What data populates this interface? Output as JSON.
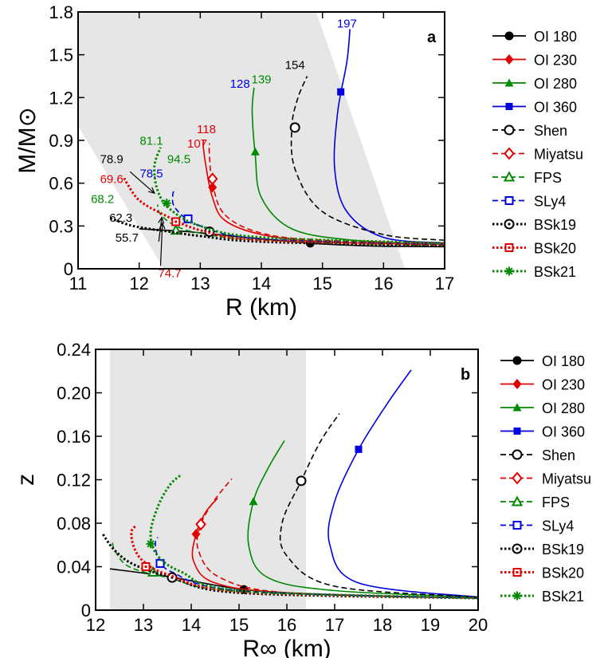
{
  "chart_data": [
    {
      "type": "line",
      "panel_label": "a",
      "xlabel": "R (km)",
      "ylabel": "M/M⊙",
      "xlim": [
        11,
        17
      ],
      "ylim": [
        0,
        1.8
      ],
      "xticks": [
        11,
        12,
        13,
        14,
        15,
        16,
        17
      ],
      "yticks": [
        0,
        0.3,
        0.6,
        0.9,
        1.2,
        1.5,
        1.8
      ],
      "ytick_labels": [
        "0",
        "0.3",
        "0.6",
        "0.9",
        "1.2",
        "1.5",
        "1.8"
      ],
      "xtick_labels": [
        "11",
        "12",
        "13",
        "14",
        "15",
        "16",
        "17"
      ],
      "shaded_region": [
        [
          11,
          1.0
        ],
        [
          11,
          1.8
        ],
        [
          14.9,
          1.8
        ],
        [
          16.35,
          0
        ],
        [
          12.4,
          0
        ]
      ],
      "grid": false,
      "legend_position": "right",
      "series": [
        {
          "name": "OI 180",
          "color": "#000000",
          "dash": "solid",
          "marker": "filled-circle",
          "marker_point": [
            14.8,
            0.18
          ],
          "points": [
            [
              12.0,
              0.28
            ],
            [
              12.8,
              0.26
            ],
            [
              13.5,
              0.23
            ],
            [
              14.8,
              0.18
            ],
            [
              15.8,
              0.16
            ],
            [
              17.0,
              0.155
            ]
          ]
        },
        {
          "name": "OI 230",
          "color": "#e00000",
          "dash": "solid",
          "marker": "filled-diamond",
          "marker_point": [
            13.2,
            0.57
          ],
          "points": [
            [
              17.0,
              0.17
            ],
            [
              15.0,
              0.19
            ],
            [
              14.0,
              0.24
            ],
            [
              13.4,
              0.34
            ],
            [
              13.2,
              0.5
            ],
            [
              13.1,
              0.7
            ],
            [
              13.05,
              0.85
            ],
            [
              13.05,
              0.9
            ]
          ]
        },
        {
          "name": "OI 280",
          "color": "#008a00",
          "dash": "solid",
          "marker": "filled-triangle",
          "marker_point": [
            13.9,
            0.82
          ],
          "points": [
            [
              17.0,
              0.17
            ],
            [
              15.5,
              0.2
            ],
            [
              14.5,
              0.28
            ],
            [
              14.0,
              0.5
            ],
            [
              13.9,
              0.8
            ],
            [
              13.85,
              1.1
            ],
            [
              13.88,
              1.27
            ]
          ]
        },
        {
          "name": "OI 360",
          "color": "#0000e0",
          "dash": "solid",
          "marker": "filled-square",
          "marker_point": [
            15.3,
            1.24
          ],
          "points": [
            [
              17.0,
              0.18
            ],
            [
              16.0,
              0.22
            ],
            [
              15.4,
              0.4
            ],
            [
              15.2,
              0.7
            ],
            [
              15.25,
              1.1
            ],
            [
              15.4,
              1.45
            ],
            [
              15.45,
              1.68
            ]
          ]
        },
        {
          "name": "Shen",
          "color": "#000000",
          "dash": "dashed",
          "marker": "open-circle",
          "marker_point": [
            14.55,
            0.99
          ],
          "points": [
            [
              17.0,
              0.2
            ],
            [
              16.0,
              0.24
            ],
            [
              15.0,
              0.4
            ],
            [
              14.55,
              0.7
            ],
            [
              14.5,
              1.0
            ],
            [
              14.6,
              1.2
            ],
            [
              14.75,
              1.35
            ]
          ]
        },
        {
          "name": "Miyatsu",
          "color": "#e00000",
          "dash": "dashed",
          "marker": "open-diamond",
          "marker_point": [
            13.2,
            0.63
          ],
          "points": [
            [
              17.0,
              0.18
            ],
            [
              15.0,
              0.2
            ],
            [
              14.0,
              0.25
            ],
            [
              13.4,
              0.38
            ],
            [
              13.2,
              0.6
            ],
            [
              13.15,
              0.8
            ],
            [
              13.15,
              0.88
            ]
          ]
        },
        {
          "name": "FPS",
          "color": "#008a00",
          "dash": "dashed",
          "marker": "open-triangle",
          "marker_point": [
            12.6,
            0.27
          ],
          "points": [
            [
              17.0,
              0.16
            ],
            [
              14.0,
              0.2
            ],
            [
              13.0,
              0.25
            ],
            [
              12.6,
              0.3
            ],
            [
              12.35,
              0.38
            ],
            [
              12.3,
              0.45
            ]
          ]
        },
        {
          "name": "SLy4",
          "color": "#0000e0",
          "dash": "dashed",
          "marker": "open-square",
          "marker_point": [
            12.8,
            0.35
          ],
          "points": [
            [
              17.0,
              0.17
            ],
            [
              14.0,
              0.21
            ],
            [
              13.0,
              0.3
            ],
            [
              12.6,
              0.42
            ],
            [
              12.55,
              0.52
            ],
            [
              12.6,
              0.56
            ]
          ]
        },
        {
          "name": "BSk19",
          "color": "#000000",
          "dash": "dotted",
          "marker": "open-circle-dot",
          "marker_point": [
            13.15,
            0.26
          ],
          "points": [
            [
              17.0,
              0.16
            ],
            [
              14.0,
              0.19
            ],
            [
              13.0,
              0.23
            ],
            [
              12.5,
              0.26
            ],
            [
              11.9,
              0.3
            ],
            [
              11.5,
              0.36
            ]
          ]
        },
        {
          "name": "BSk20",
          "color": "#e00000",
          "dash": "dotted",
          "marker": "open-square-dot",
          "marker_point": [
            12.6,
            0.33
          ],
          "points": [
            [
              17.0,
              0.17
            ],
            [
              14.0,
              0.2
            ],
            [
              13.0,
              0.27
            ],
            [
              12.4,
              0.38
            ],
            [
              12.0,
              0.48
            ],
            [
              11.8,
              0.6
            ],
            [
              11.75,
              0.64
            ]
          ]
        },
        {
          "name": "BSk21",
          "color": "#008a00",
          "dash": "dotted",
          "marker": "asterisk",
          "marker_point": [
            12.45,
            0.46
          ],
          "points": [
            [
              17.0,
              0.18
            ],
            [
              14.0,
              0.22
            ],
            [
              13.0,
              0.3
            ],
            [
              12.5,
              0.42
            ],
            [
              12.3,
              0.55
            ],
            [
              12.25,
              0.72
            ],
            [
              12.35,
              0.85
            ]
          ]
        }
      ],
      "annotations": [
        {
          "text": "197",
          "x": 15.4,
          "y": 1.69,
          "color": "#0000e0"
        },
        {
          "text": "154",
          "x": 14.55,
          "y": 1.4,
          "color": "#000000"
        },
        {
          "text": "128",
          "x": 13.65,
          "y": 1.27,
          "color": "#0000e0"
        },
        {
          "text": "139",
          "x": 14.0,
          "y": 1.3,
          "color": "#008a00"
        },
        {
          "text": "118",
          "x": 13.1,
          "y": 0.95,
          "color": "#e00000"
        },
        {
          "text": "107",
          "x": 12.95,
          "y": 0.85,
          "color": "#e00000"
        },
        {
          "text": "81.1",
          "x": 12.2,
          "y": 0.87,
          "color": "#008a00"
        },
        {
          "text": "94.5",
          "x": 12.65,
          "y": 0.74,
          "color": "#008a00"
        },
        {
          "text": "78.9",
          "x": 11.55,
          "y": 0.74,
          "color": "#000000"
        },
        {
          "text": "78.5",
          "x": 12.2,
          "y": 0.64,
          "color": "#0000e0"
        },
        {
          "text": "69.6",
          "x": 11.55,
          "y": 0.6,
          "color": "#e00000"
        },
        {
          "text": "68.2",
          "x": 11.4,
          "y": 0.46,
          "color": "#008a00"
        },
        {
          "text": "62.3",
          "x": 11.7,
          "y": 0.33,
          "color": "#000000"
        },
        {
          "text": "55.7",
          "x": 11.8,
          "y": 0.19,
          "color": "#000000"
        },
        {
          "text": "74.7",
          "x": 12.5,
          "y": -0.06,
          "color": "#e00000"
        }
      ]
    },
    {
      "type": "line",
      "panel_label": "b",
      "xlabel": "R∞ (km)",
      "ylabel": "z",
      "xlim": [
        12,
        20
      ],
      "ylim": [
        0,
        0.24
      ],
      "xticks": [
        12,
        13,
        14,
        15,
        16,
        17,
        18,
        19,
        20
      ],
      "yticks": [
        0,
        0.04,
        0.08,
        0.12,
        0.16,
        0.2,
        0.24
      ],
      "ytick_labels": [
        "0",
        "0.04",
        "0.08",
        "0.12",
        "0.16",
        "0.20",
        "0.24"
      ],
      "xtick_labels": [
        "12",
        "13",
        "14",
        "15",
        "16",
        "17",
        "18",
        "19",
        "20"
      ],
      "shaded_xrange": [
        12.3,
        16.4
      ],
      "grid": false,
      "legend_position": "right",
      "series": [
        {
          "name": "OI 180",
          "color": "#000000",
          "dash": "solid",
          "marker": "filled-circle",
          "marker_point": [
            15.1,
            0.019
          ],
          "points": [
            [
              12.3,
              0.038
            ],
            [
              13.5,
              0.031
            ],
            [
              15.1,
              0.019
            ],
            [
              17.0,
              0.014
            ],
            [
              20.0,
              0.011
            ]
          ]
        },
        {
          "name": "OI 230",
          "color": "#e00000",
          "dash": "solid",
          "marker": "filled-diamond",
          "marker_point": [
            14.1,
            0.07
          ],
          "points": [
            [
              20.0,
              0.011
            ],
            [
              16.0,
              0.016
            ],
            [
              14.5,
              0.025
            ],
            [
              14.05,
              0.045
            ],
            [
              14.1,
              0.07
            ],
            [
              14.3,
              0.09
            ],
            [
              14.55,
              0.103
            ]
          ]
        },
        {
          "name": "OI 280",
          "color": "#008a00",
          "dash": "solid",
          "marker": "filled-triangle",
          "marker_point": [
            15.3,
            0.1
          ],
          "points": [
            [
              20.0,
              0.012
            ],
            [
              17.0,
              0.018
            ],
            [
              15.6,
              0.03
            ],
            [
              15.2,
              0.06
            ],
            [
              15.3,
              0.1
            ],
            [
              15.6,
              0.13
            ],
            [
              15.95,
              0.156
            ]
          ]
        },
        {
          "name": "OI 360",
          "color": "#0000e0",
          "dash": "solid",
          "marker": "filled-square",
          "marker_point": [
            17.5,
            0.148
          ],
          "points": [
            [
              20.0,
              0.012
            ],
            [
              17.5,
              0.025
            ],
            [
              16.9,
              0.06
            ],
            [
              17.0,
              0.1
            ],
            [
              17.5,
              0.148
            ],
            [
              18.1,
              0.19
            ],
            [
              18.6,
              0.221
            ]
          ]
        },
        {
          "name": "Shen",
          "color": "#000000",
          "dash": "dashed",
          "marker": "open-circle",
          "marker_point": [
            16.3,
            0.119
          ],
          "points": [
            [
              20.0,
              0.012
            ],
            [
              17.0,
              0.022
            ],
            [
              16.0,
              0.05
            ],
            [
              15.9,
              0.08
            ],
            [
              16.3,
              0.119
            ],
            [
              16.7,
              0.155
            ],
            [
              17.1,
              0.181
            ]
          ]
        },
        {
          "name": "Miyatsu",
          "color": "#e00000",
          "dash": "dashed",
          "marker": "open-diamond",
          "marker_point": [
            14.2,
            0.079
          ],
          "points": [
            [
              20.0,
              0.011
            ],
            [
              16.0,
              0.016
            ],
            [
              14.6,
              0.03
            ],
            [
              14.15,
              0.055
            ],
            [
              14.2,
              0.079
            ],
            [
              14.5,
              0.102
            ],
            [
              14.85,
              0.121
            ]
          ]
        },
        {
          "name": "FPS",
          "color": "#008a00",
          "dash": "dashed",
          "marker": "open-triangle",
          "marker_point": [
            13.2,
            0.035
          ],
          "points": [
            [
              20.0,
              0.011
            ],
            [
              15.0,
              0.017
            ],
            [
              13.5,
              0.03
            ],
            [
              12.7,
              0.04
            ],
            [
              12.4,
              0.055
            ],
            [
              12.35,
              0.065
            ]
          ]
        },
        {
          "name": "SLy4",
          "color": "#0000e0",
          "dash": "dashed",
          "marker": "open-square",
          "marker_point": [
            13.35,
            0.043
          ],
          "points": [
            [
              20.0,
              0.011
            ],
            [
              15.0,
              0.018
            ],
            [
              13.6,
              0.035
            ],
            [
              13.3,
              0.05
            ],
            [
              13.25,
              0.062
            ],
            [
              13.3,
              0.067
            ]
          ]
        },
        {
          "name": "BSk19",
          "color": "#000000",
          "dash": "dotted",
          "marker": "open-circle-dot",
          "marker_point": [
            13.6,
            0.03
          ],
          "points": [
            [
              20.0,
              0.011
            ],
            [
              15.0,
              0.016
            ],
            [
              13.6,
              0.03
            ],
            [
              12.8,
              0.042
            ],
            [
              12.4,
              0.055
            ],
            [
              12.15,
              0.07
            ]
          ]
        },
        {
          "name": "BSk20",
          "color": "#e00000",
          "dash": "dotted",
          "marker": "open-square-dot",
          "marker_point": [
            13.05,
            0.04
          ],
          "points": [
            [
              20.0,
              0.011
            ],
            [
              15.0,
              0.017
            ],
            [
              13.5,
              0.033
            ],
            [
              13.0,
              0.045
            ],
            [
              12.8,
              0.058
            ],
            [
              12.75,
              0.072
            ],
            [
              12.85,
              0.078
            ]
          ]
        },
        {
          "name": "BSk21",
          "color": "#008a00",
          "dash": "dotted",
          "marker": "asterisk",
          "marker_point": [
            13.15,
            0.061
          ],
          "points": [
            [
              20.0,
              0.011
            ],
            [
              15.0,
              0.018
            ],
            [
              13.8,
              0.035
            ],
            [
              13.3,
              0.05
            ],
            [
              13.15,
              0.07
            ],
            [
              13.3,
              0.095
            ],
            [
              13.55,
              0.115
            ],
            [
              13.8,
              0.125
            ]
          ]
        }
      ]
    }
  ]
}
